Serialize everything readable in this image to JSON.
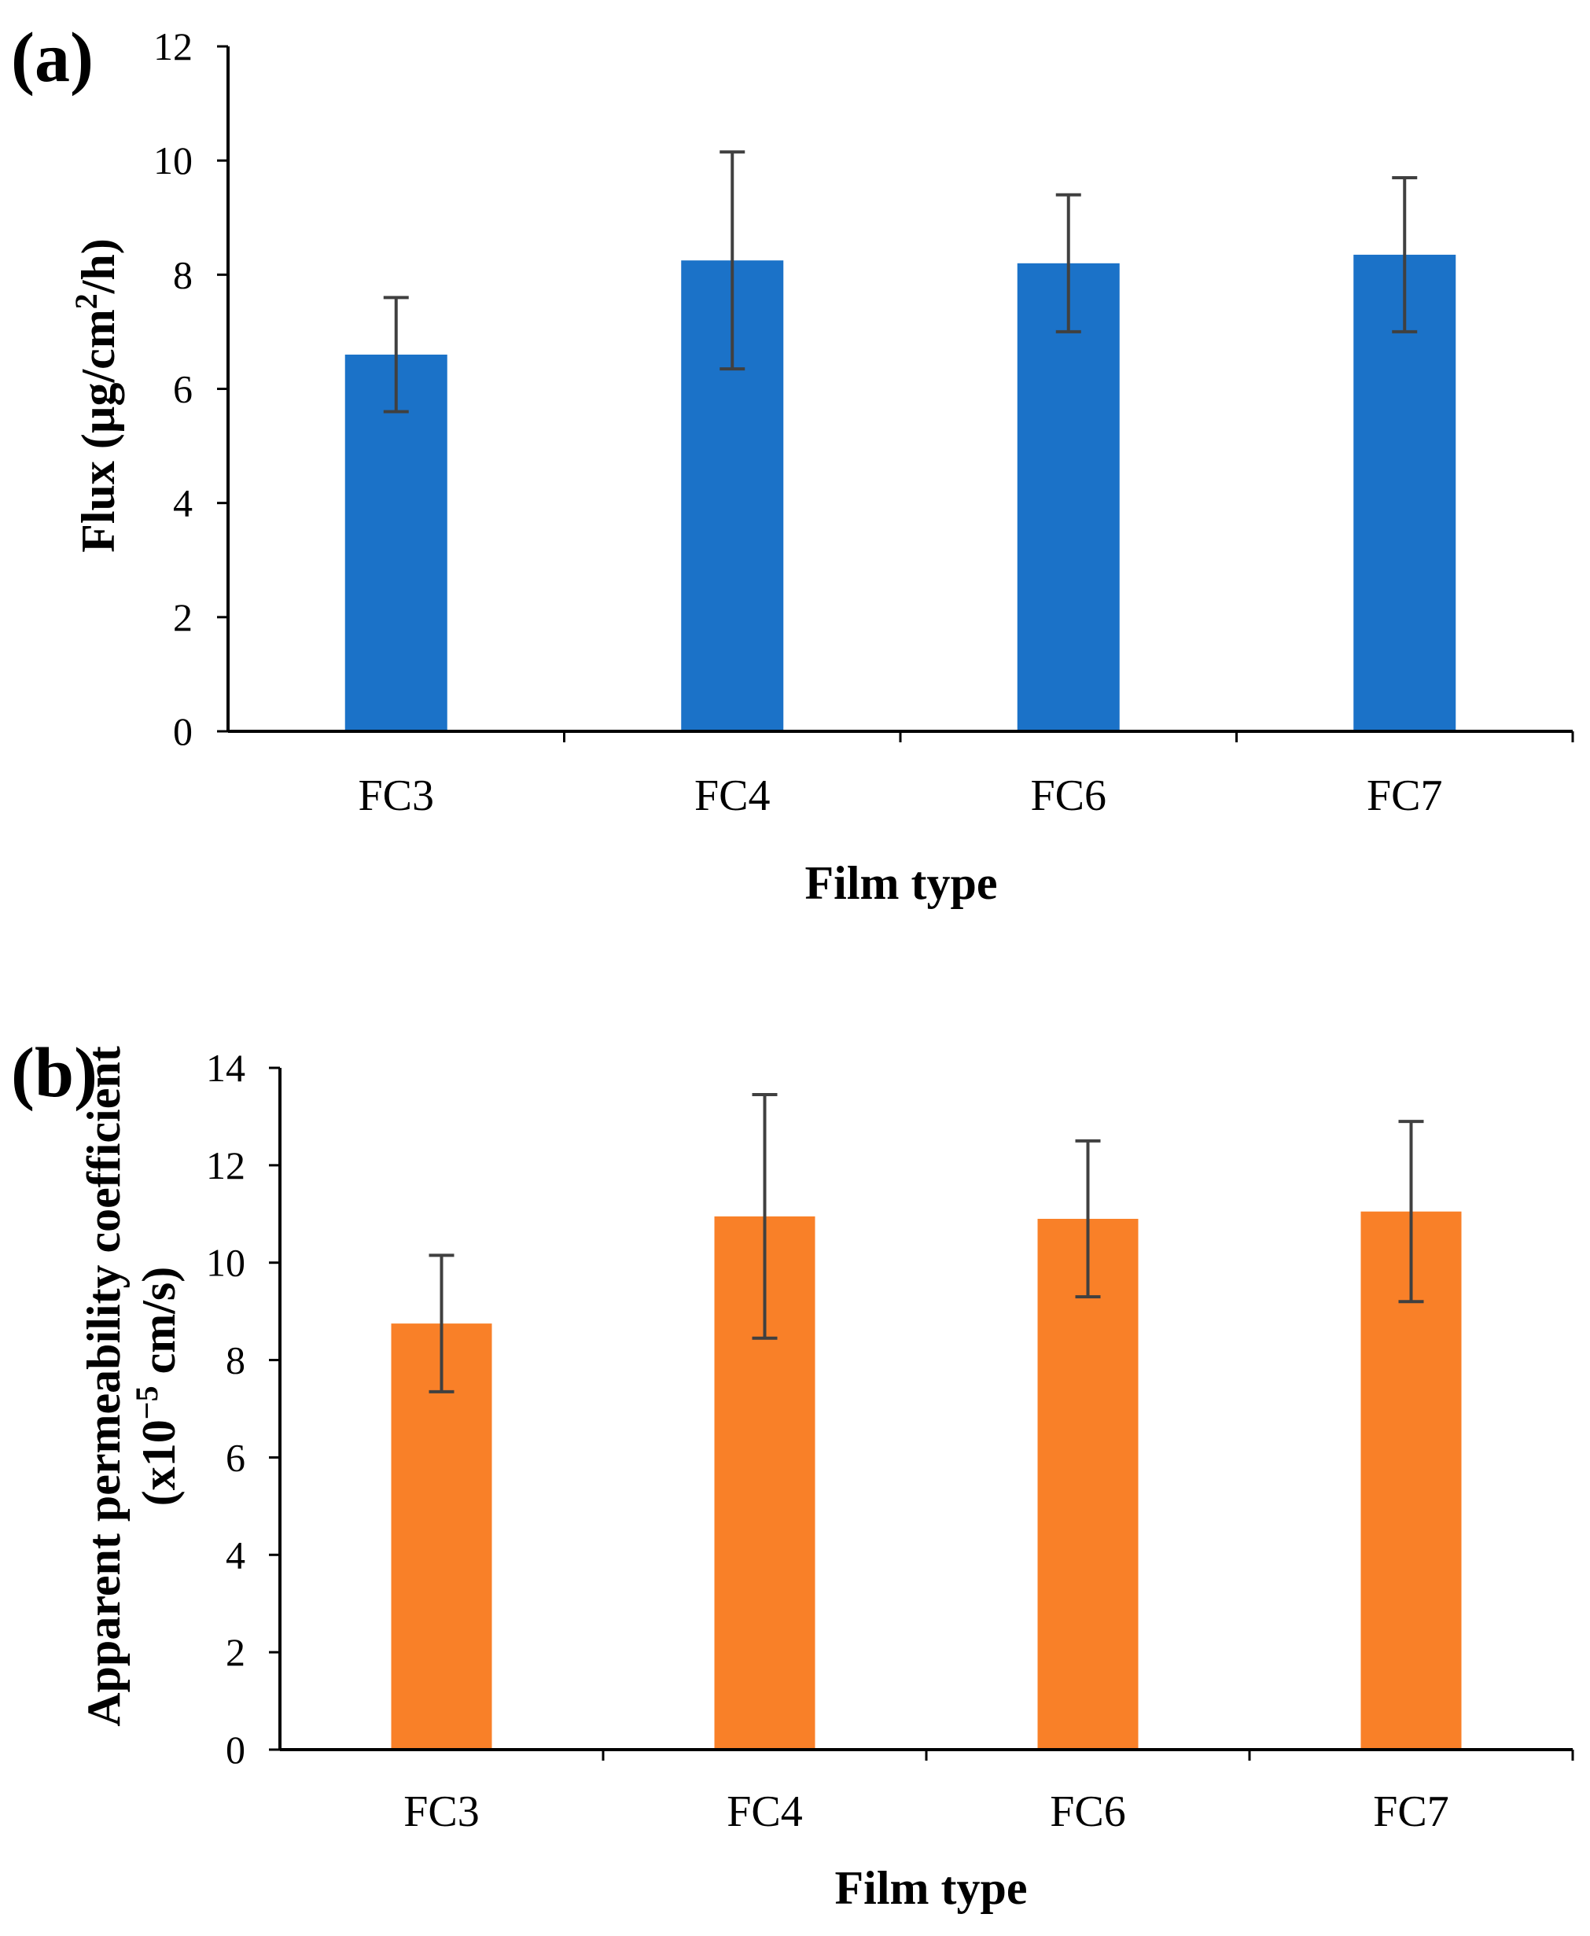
{
  "chart_data": [
    {
      "panel": "(a)",
      "type": "bar",
      "categories": [
        "FC3",
        "FC4",
        "FC6",
        "FC7"
      ],
      "values": [
        6.6,
        8.25,
        8.2,
        8.35
      ],
      "errors": [
        1.0,
        1.9,
        1.2,
        1.35
      ],
      "xlabel": "Film type",
      "ylabel_parts": [
        "Flux (µg/cm",
        "2",
        "/h)"
      ],
      "ylim": [
        0,
        12
      ],
      "yticks": [
        "0",
        "2",
        "4",
        "6",
        "8",
        "10",
        "12"
      ],
      "grid": false,
      "color": "#1b72c8",
      "error_color": "#404040"
    },
    {
      "panel": "(b)",
      "type": "bar",
      "categories": [
        "FC3",
        "FC4",
        "FC6",
        "FC7"
      ],
      "values": [
        8.75,
        10.95,
        10.9,
        11.05
      ],
      "errors": [
        1.4,
        2.5,
        1.6,
        1.85
      ],
      "xlabel": "Film type",
      "ylabel_line1": "Apparent permeability coefficient",
      "ylabel_line2_parts": [
        "(x10",
        "−5",
        " cm/s)"
      ],
      "ylim": [
        0,
        14
      ],
      "yticks": [
        "0",
        "2",
        "4",
        "6",
        "8",
        "10",
        "12",
        "14"
      ],
      "grid": false,
      "color": "#f98028",
      "error_color": "#404040"
    }
  ]
}
